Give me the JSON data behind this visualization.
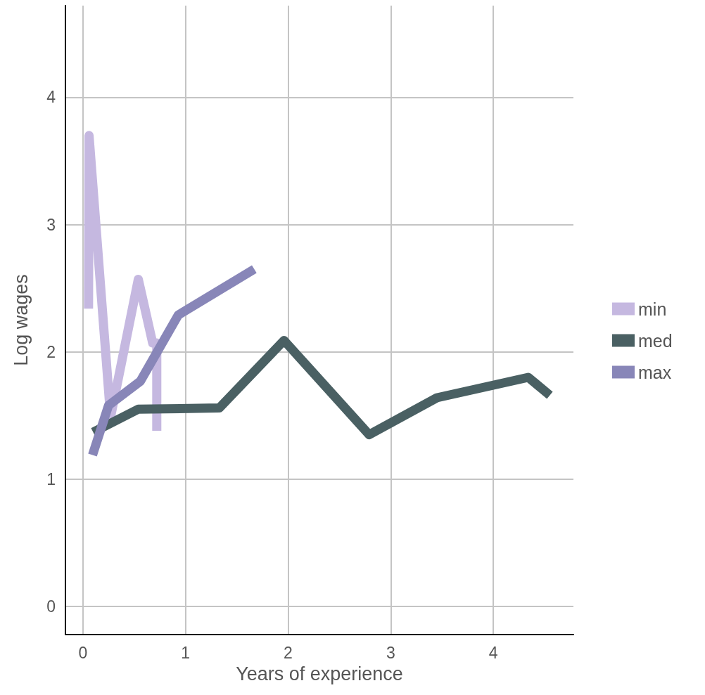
{
  "chart_data": {
    "type": "line",
    "xlabel": "Years of experience",
    "ylabel": "Log wages",
    "xlim": [
      -0.17,
      4.78
    ],
    "xticks": [
      0,
      1,
      2,
      3,
      4
    ],
    "ylim": [
      -0.22,
      4.72
    ],
    "yticks": [
      0,
      1,
      2,
      3,
      4
    ],
    "grid": true,
    "legend": "right",
    "marker": "none",
    "line_style": "solid",
    "series": [
      {
        "name": "min",
        "color": "#c5b8e0",
        "x": [
          0.055,
          0.06,
          0.27,
          0.54,
          0.68,
          0.72,
          0.72
        ],
        "values": [
          2.34,
          3.7,
          1.49,
          2.57,
          2.07,
          2.07,
          1.38
        ]
      },
      {
        "name": "med",
        "color": "#4a6063",
        "x": [
          0.1,
          0.54,
          1.33,
          1.96,
          2.79,
          3.45,
          4.34,
          4.55
        ],
        "values": [
          1.37,
          1.55,
          1.56,
          2.09,
          1.35,
          1.64,
          1.8,
          1.66
        ]
      },
      {
        "name": "max",
        "color": "#8886b8",
        "x": [
          0.094,
          0.25,
          0.56,
          0.93,
          1.67
        ],
        "values": [
          1.19,
          1.58,
          1.77,
          2.29,
          2.65
        ]
      }
    ]
  }
}
